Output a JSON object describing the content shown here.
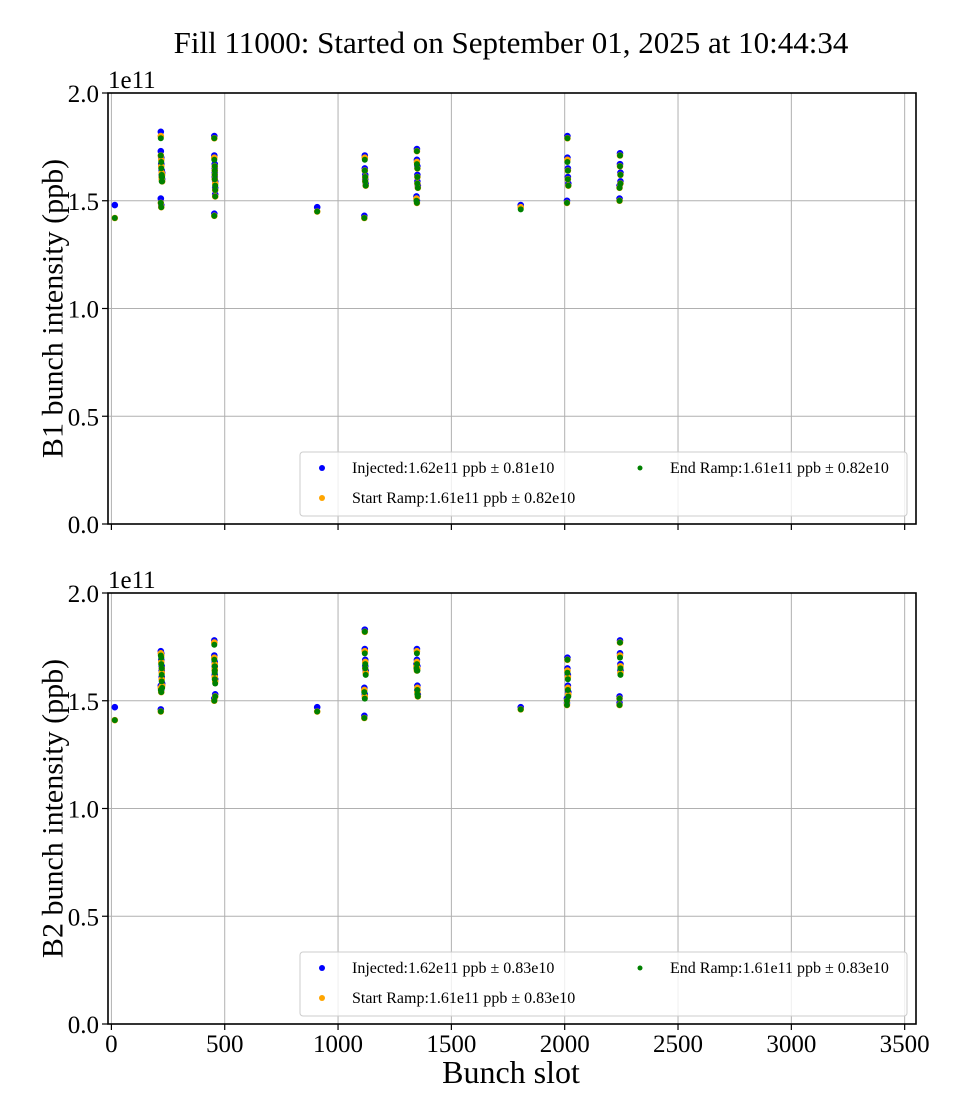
{
  "chart_data": [
    {
      "type": "scatter",
      "title": "Fill 11000: Started on September 01, 2025 at 10:44:34",
      "xlabel": "",
      "ylabel": "B1 bunch intensity (ppb)",
      "y_offset_label": "1e11",
      "xlim": [
        -15,
        3550
      ],
      "ylim": [
        0.0,
        2.0
      ],
      "x_ticks": [
        0,
        500,
        1000,
        1500,
        2000,
        2500,
        3000,
        3500
      ],
      "x_tick_labels_visible": false,
      "y_ticks": [
        "0.0",
        "0.5",
        "1.0",
        "1.5",
        "2.0"
      ],
      "grid": true,
      "legend_position": "lower-right",
      "series": [
        {
          "name": "Injected:1.62e11 ppb ± 0.81e10",
          "color": "#0000ff",
          "x": [
            15,
            218,
            218,
            220,
            220,
            222,
            222,
            222,
            224,
            224,
            218,
            220,
            454,
            454,
            456,
            456,
            456,
            458,
            458,
            458,
            454,
            456,
            908,
            1118,
            1118,
            1120,
            1120,
            1122,
            1116,
            1348,
            1348,
            1350,
            1350,
            1350,
            1352,
            1346,
            1348,
            1806,
            2012,
            2012,
            2014,
            2014,
            2016,
            2010,
            2244,
            2244,
            2246,
            2246,
            2242,
            2242
          ],
          "y": [
            1.48,
            1.82,
            1.73,
            1.7,
            1.67,
            1.64,
            1.62,
            1.61,
            1.63,
            1.6,
            1.51,
            1.48,
            1.8,
            1.71,
            1.67,
            1.65,
            1.61,
            1.59,
            1.56,
            1.53,
            1.44,
            1.63,
            1.47,
            1.71,
            1.65,
            1.62,
            1.6,
            1.58,
            1.43,
            1.74,
            1.69,
            1.66,
            1.62,
            1.59,
            1.57,
            1.52,
            1.5,
            1.48,
            1.8,
            1.7,
            1.65,
            1.61,
            1.58,
            1.5,
            1.72,
            1.67,
            1.63,
            1.59,
            1.57,
            1.51
          ]
        },
        {
          "name": "Start Ramp:1.61e11 ppb ± 0.82e10",
          "color": "#ffa500",
          "x": [
            15,
            218,
            218,
            220,
            220,
            222,
            222,
            222,
            224,
            224,
            218,
            220,
            454,
            454,
            456,
            456,
            456,
            458,
            458,
            458,
            454,
            456,
            908,
            1118,
            1118,
            1120,
            1120,
            1122,
            1116,
            1348,
            1348,
            1350,
            1350,
            1350,
            1352,
            1346,
            1348,
            1806,
            2012,
            2012,
            2014,
            2014,
            2016,
            2010,
            2244,
            2244,
            2246,
            2246,
            2242,
            2242
          ],
          "y": [
            1.42,
            1.8,
            1.71,
            1.69,
            1.66,
            1.63,
            1.61,
            1.6,
            1.62,
            1.59,
            1.49,
            1.47,
            1.79,
            1.7,
            1.66,
            1.64,
            1.6,
            1.58,
            1.55,
            1.52,
            1.43,
            1.62,
            1.45,
            1.7,
            1.64,
            1.61,
            1.59,
            1.57,
            1.42,
            1.73,
            1.68,
            1.65,
            1.61,
            1.58,
            1.56,
            1.51,
            1.49,
            1.47,
            1.79,
            1.69,
            1.64,
            1.6,
            1.57,
            1.49,
            1.71,
            1.66,
            1.62,
            1.58,
            1.56,
            1.5
          ]
        },
        {
          "name": "End Ramp:1.61e11 ppb ± 0.82e10",
          "color": "#008000",
          "x": [
            15,
            218,
            218,
            220,
            220,
            222,
            222,
            222,
            224,
            224,
            218,
            220,
            454,
            454,
            456,
            456,
            456,
            458,
            458,
            458,
            454,
            456,
            908,
            1118,
            1118,
            1120,
            1120,
            1122,
            1116,
            1348,
            1348,
            1350,
            1350,
            1350,
            1352,
            1346,
            1348,
            1806,
            2012,
            2012,
            2014,
            2014,
            2016,
            2010,
            2244,
            2244,
            2246,
            2246,
            2242,
            2242
          ],
          "y": [
            1.42,
            1.79,
            1.71,
            1.68,
            1.65,
            1.62,
            1.61,
            1.59,
            1.61,
            1.59,
            1.49,
            1.47,
            1.79,
            1.69,
            1.66,
            1.64,
            1.6,
            1.57,
            1.55,
            1.52,
            1.43,
            1.62,
            1.45,
            1.69,
            1.64,
            1.61,
            1.59,
            1.57,
            1.42,
            1.73,
            1.67,
            1.65,
            1.61,
            1.58,
            1.56,
            1.5,
            1.49,
            1.46,
            1.79,
            1.68,
            1.64,
            1.6,
            1.57,
            1.49,
            1.71,
            1.66,
            1.62,
            1.58,
            1.56,
            1.5
          ]
        }
      ]
    },
    {
      "type": "scatter",
      "title": "",
      "xlabel": "Bunch slot",
      "ylabel": "B2 bunch intensity (ppb)",
      "y_offset_label": "1e11",
      "xlim": [
        -15,
        3550
      ],
      "ylim": [
        0.0,
        2.0
      ],
      "x_ticks": [
        0,
        500,
        1000,
        1500,
        2000,
        2500,
        3000,
        3500
      ],
      "x_tick_labels": [
        "0",
        "500",
        "1000",
        "1500",
        "2000",
        "2500",
        "3000",
        "3500"
      ],
      "y_ticks": [
        "0.0",
        "0.5",
        "1.0",
        "1.5",
        "2.0"
      ],
      "grid": true,
      "legend_position": "lower-right",
      "series": [
        {
          "name": "Injected:1.62e11 ppb ± 0.83e10",
          "color": "#0000ff",
          "x": [
            15,
            218,
            220,
            220,
            222,
            222,
            222,
            224,
            218,
            220,
            218,
            454,
            454,
            456,
            456,
            456,
            458,
            458,
            454,
            456,
            908,
            1118,
            1118,
            1120,
            1120,
            1122,
            1116,
            1118,
            1116,
            1348,
            1348,
            1350,
            1350,
            1350,
            1352,
            1346,
            1348,
            1806,
            2012,
            2012,
            2014,
            2014,
            2016,
            2010,
            2010,
            2244,
            2244,
            2246,
            2246,
            2242,
            2242
          ],
          "y": [
            1.47,
            1.73,
            1.72,
            1.69,
            1.66,
            1.64,
            1.61,
            1.58,
            1.57,
            1.55,
            1.46,
            1.78,
            1.71,
            1.68,
            1.65,
            1.62,
            1.6,
            1.53,
            1.51,
            1.66,
            1.47,
            1.83,
            1.74,
            1.69,
            1.66,
            1.64,
            1.56,
            1.53,
            1.43,
            1.74,
            1.69,
            1.66,
            1.57,
            1.55,
            1.53,
            1.67,
            1.65,
            1.47,
            1.7,
            1.65,
            1.62,
            1.57,
            1.54,
            1.51,
            1.49,
            1.78,
            1.72,
            1.67,
            1.64,
            1.52,
            1.49
          ]
        },
        {
          "name": "Start Ramp:1.61e11 ppb ± 0.83e10",
          "color": "#ffa500",
          "x": [
            15,
            218,
            220,
            220,
            222,
            222,
            222,
            224,
            218,
            220,
            218,
            454,
            454,
            456,
            456,
            456,
            458,
            458,
            454,
            456,
            908,
            1118,
            1118,
            1120,
            1120,
            1122,
            1116,
            1118,
            1116,
            1348,
            1348,
            1350,
            1350,
            1350,
            1352,
            1346,
            1348,
            1806,
            2012,
            2012,
            2014,
            2014,
            2016,
            2010,
            2010,
            2244,
            2244,
            2246,
            2246,
            2242,
            2242
          ],
          "y": [
            1.41,
            1.72,
            1.71,
            1.68,
            1.65,
            1.63,
            1.6,
            1.57,
            1.56,
            1.54,
            1.45,
            1.77,
            1.7,
            1.67,
            1.64,
            1.61,
            1.59,
            1.52,
            1.5,
            1.65,
            1.45,
            1.82,
            1.73,
            1.68,
            1.65,
            1.63,
            1.55,
            1.52,
            1.42,
            1.73,
            1.68,
            1.65,
            1.56,
            1.54,
            1.52,
            1.66,
            1.64,
            1.46,
            1.69,
            1.64,
            1.61,
            1.56,
            1.53,
            1.5,
            1.48,
            1.77,
            1.71,
            1.66,
            1.63,
            1.51,
            1.48
          ]
        },
        {
          "name": "End Ramp:1.61e11 ppb ± 0.83e10",
          "color": "#008000",
          "x": [
            15,
            218,
            220,
            220,
            222,
            222,
            222,
            224,
            218,
            220,
            218,
            454,
            454,
            456,
            456,
            456,
            458,
            458,
            454,
            456,
            908,
            1118,
            1118,
            1120,
            1120,
            1122,
            1116,
            1118,
            1116,
            1348,
            1348,
            1350,
            1350,
            1350,
            1352,
            1346,
            1348,
            1806,
            2012,
            2012,
            2014,
            2014,
            2016,
            2010,
            2010,
            2244,
            2244,
            2246,
            2246,
            2242,
            2242
          ],
          "y": [
            1.41,
            1.71,
            1.7,
            1.67,
            1.65,
            1.62,
            1.59,
            1.56,
            1.55,
            1.54,
            1.45,
            1.76,
            1.69,
            1.66,
            1.63,
            1.6,
            1.58,
            1.52,
            1.5,
            1.64,
            1.45,
            1.82,
            1.72,
            1.67,
            1.65,
            1.62,
            1.54,
            1.51,
            1.42,
            1.72,
            1.67,
            1.64,
            1.55,
            1.53,
            1.52,
            1.65,
            1.64,
            1.46,
            1.69,
            1.63,
            1.6,
            1.55,
            1.52,
            1.5,
            1.48,
            1.77,
            1.7,
            1.65,
            1.62,
            1.51,
            1.48
          ]
        }
      ]
    }
  ]
}
